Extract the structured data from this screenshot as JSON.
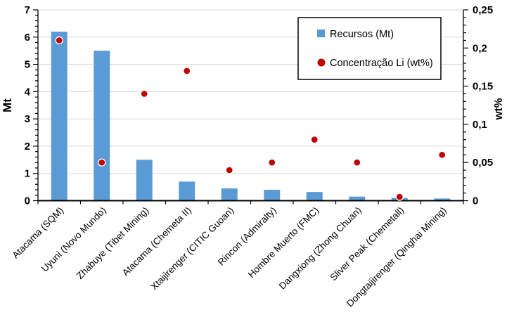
{
  "chart_data": {
    "type": "bar",
    "combo_types": [
      "bar",
      "scatter"
    ],
    "categories": [
      "Atacama (SQM)",
      "Uyuni (Novo Mundo)",
      "Zhabuye (Tibet Mining)",
      "Atacama (Chemeta II)",
      "Xtaijirenger (CITIC Guoan)",
      "Rincon (Admiralty)",
      "Hombre Muerto (FMC)",
      "Dangxiong (Zhong Chuan)",
      "Sliver Peak (Chemetall)",
      "Dongtaijirenger (Qinghai Mining)"
    ],
    "series": [
      {
        "name": "Recursos (Mt)",
        "type": "bar",
        "axis": "left",
        "color": "#5B9BD5",
        "values": [
          6.2,
          5.5,
          1.5,
          0.7,
          0.45,
          0.4,
          0.32,
          0.15,
          0.1,
          0.08
        ]
      },
      {
        "name": "Concentração Li (wt%)",
        "type": "scatter",
        "axis": "right",
        "color": "#C00000",
        "marker_outline": "#FFFFFF",
        "values": [
          0.21,
          0.05,
          0.14,
          0.17,
          0.04,
          0.05,
          0.08,
          0.05,
          0.005,
          0.06
        ]
      }
    ],
    "title": "",
    "xlabel": "",
    "left_axis": {
      "title": "Mt",
      "min": 0,
      "max": 7,
      "major_step": 1,
      "minor_step": 0.2,
      "tick_labels": [
        "0",
        "1",
        "2",
        "3",
        "4",
        "5",
        "6",
        "7"
      ]
    },
    "right_axis": {
      "title": "wt%",
      "min": 0,
      "max": 0.25,
      "major_step": 0.05,
      "minor_step": 0.01,
      "tick_labels": [
        "0",
        "0,05",
        "0,1",
        "0,15",
        "0,2",
        "0,25"
      ]
    },
    "grid": "horizontal-major-left-axis",
    "gridline_color": "#D9D9D9",
    "axis_color": "#000000",
    "background": "#FFFFFF",
    "legend": {
      "position": "inside-top-center-right",
      "border_color": "#000000",
      "fill": "#FFFFFF",
      "items": [
        {
          "label": "Recursos (Mt)",
          "marker": "square",
          "color": "#5B9BD5"
        },
        {
          "label": "Concentração Li (wt%)",
          "marker": "circle",
          "color": "#C00000"
        }
      ]
    }
  }
}
